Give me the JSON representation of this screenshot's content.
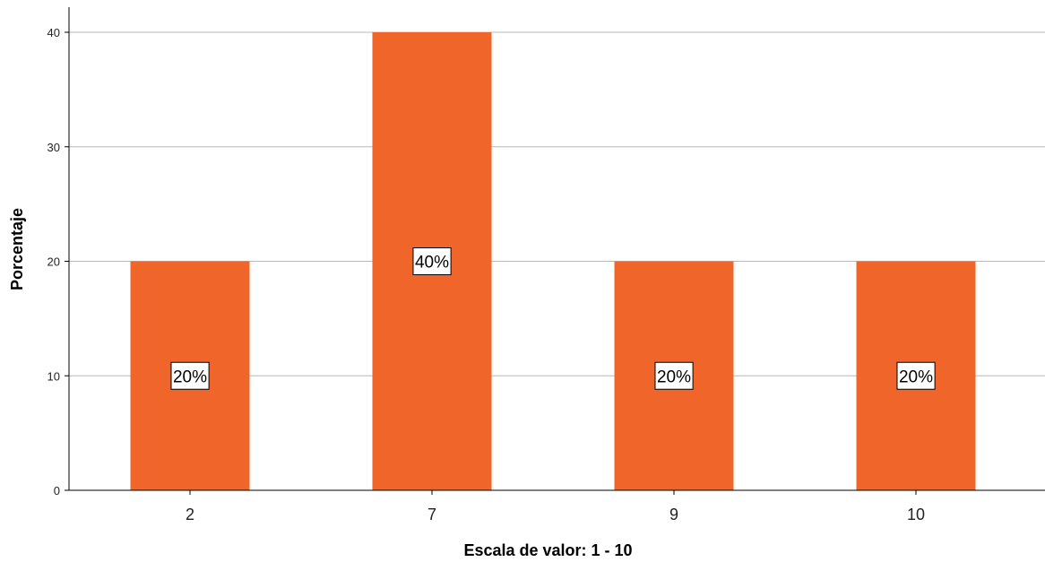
{
  "chart_data": {
    "type": "bar",
    "categories": [
      "2",
      "7",
      "9",
      "10"
    ],
    "values": [
      20,
      40,
      20,
      20
    ],
    "data_labels": [
      "20%",
      "40%",
      "20%",
      "20%"
    ],
    "yticks": [
      0,
      10,
      20,
      30,
      40
    ],
    "ylim": [
      0,
      42
    ],
    "xlabel": "Escala de valor: 1 - 10",
    "ylabel": "Porcentaje",
    "grid": true,
    "bar_color": "#f0652a",
    "grid_color": "#b8b8b8"
  }
}
